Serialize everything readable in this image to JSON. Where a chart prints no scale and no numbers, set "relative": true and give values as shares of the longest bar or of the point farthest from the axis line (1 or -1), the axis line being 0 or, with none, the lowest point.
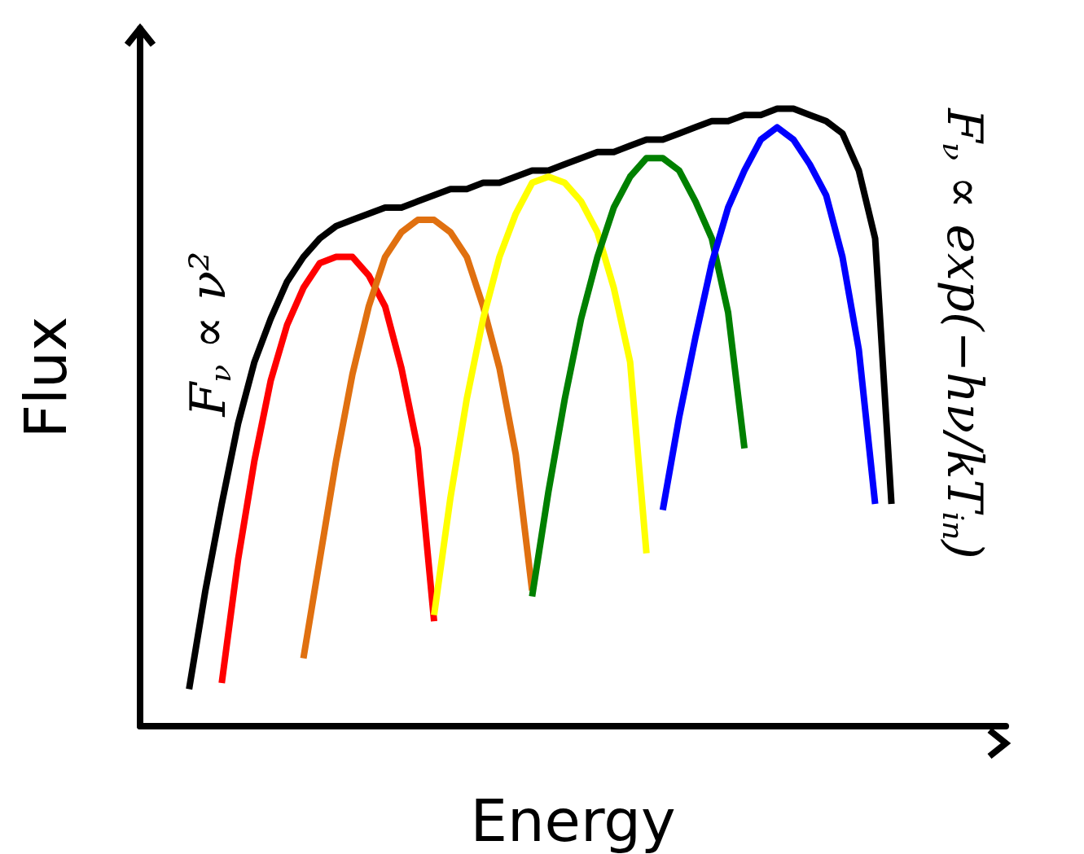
{
  "chart_data": {
    "type": "line",
    "relative": true,
    "xlabel": "Energy",
    "ylabel": "Flux",
    "annotations": [
      "F$_{ν}$ ∝ ν²",
      "F$_{ν}$ ∝ exp(−hν/kT$_{in}$)"
    ],
    "categories": [
      null,
      null,
      null,
      null,
      null,
      null,
      null,
      null,
      null,
      null,
      null,
      null,
      null,
      null,
      null,
      null,
      null,
      null,
      null,
      null,
      null,
      null,
      null,
      null,
      null,
      null,
      null,
      null,
      null,
      null,
      null,
      null,
      null,
      null,
      null,
      null,
      null,
      null,
      null,
      null,
      null,
      null,
      null,
      null,
      null,
      null,
      null,
      null,
      null,
      null,
      null,
      null,
      null,
      null
    ],
    "series": [
      {
        "color": "#000000",
        "values": [
          null,
          null,
          null,
          0.06,
          0.22,
          0.36,
          0.49,
          0.59,
          0.66,
          0.72,
          0.76,
          0.79,
          0.81,
          0.82,
          0.83,
          0.84,
          0.84,
          0.85,
          0.86,
          0.87,
          0.87,
          0.88,
          0.88,
          0.89,
          0.9,
          0.9,
          0.91,
          0.92,
          0.93,
          0.93,
          0.94,
          0.95,
          0.95,
          0.96,
          0.97,
          0.98,
          0.98,
          0.99,
          0.99,
          1.0,
          1.0,
          0.99,
          0.98,
          0.96,
          0.9,
          0.79,
          0.36,
          null,
          null,
          null,
          null,
          null,
          null,
          null
        ]
      },
      {
        "color": "#ff0000",
        "values": [
          null,
          null,
          null,
          null,
          null,
          0.07,
          0.27,
          0.43,
          0.56,
          0.65,
          0.71,
          0.75,
          0.76,
          0.76,
          0.73,
          0.68,
          0.58,
          0.45,
          0.17,
          null,
          null,
          null,
          null,
          null,
          null,
          null,
          null,
          null,
          null,
          null,
          null,
          null,
          null,
          null,
          null,
          null,
          null,
          null,
          null,
          null,
          null,
          null,
          null,
          null,
          null,
          null,
          null,
          null,
          null,
          null,
          null,
          null,
          null,
          null
        ]
      },
      {
        "color": "#e07010",
        "values": [
          null,
          null,
          null,
          null,
          null,
          null,
          null,
          null,
          null,
          null,
          0.11,
          0.27,
          0.43,
          0.57,
          0.68,
          0.76,
          0.8,
          0.82,
          0.82,
          0.8,
          0.76,
          0.68,
          0.58,
          0.44,
          0.22,
          null,
          null,
          null,
          null,
          null,
          null,
          null,
          null,
          null,
          null,
          null,
          null,
          null,
          null,
          null,
          null,
          null,
          null,
          null,
          null,
          null,
          null,
          null,
          null,
          null,
          null,
          null,
          null,
          null
        ]
      },
      {
        "color": "#ffff00",
        "values": [
          null,
          null,
          null,
          null,
          null,
          null,
          null,
          null,
          null,
          null,
          null,
          null,
          null,
          null,
          null,
          null,
          null,
          null,
          0.18,
          0.37,
          0.53,
          0.66,
          0.76,
          0.83,
          0.88,
          0.89,
          0.88,
          0.85,
          0.8,
          0.71,
          0.59,
          0.28,
          null,
          null,
          null,
          null,
          null,
          null,
          null,
          null,
          null,
          null,
          null,
          null,
          null,
          null,
          null,
          null,
          null,
          null,
          null,
          null,
          null,
          null
        ]
      },
      {
        "color": "#008000",
        "values": [
          null,
          null,
          null,
          null,
          null,
          null,
          null,
          null,
          null,
          null,
          null,
          null,
          null,
          null,
          null,
          null,
          null,
          null,
          null,
          null,
          null,
          null,
          null,
          null,
          0.21,
          0.38,
          0.53,
          0.66,
          0.76,
          0.84,
          0.89,
          0.92,
          0.92,
          0.9,
          0.85,
          0.79,
          0.67,
          0.45,
          null,
          null,
          null,
          null,
          null,
          null,
          null,
          null,
          null,
          null,
          null,
          null,
          null,
          null,
          null,
          null
        ]
      },
      {
        "color": "#0000ff",
        "values": [
          null,
          null,
          null,
          null,
          null,
          null,
          null,
          null,
          null,
          null,
          null,
          null,
          null,
          null,
          null,
          null,
          null,
          null,
          null,
          null,
          null,
          null,
          null,
          null,
          null,
          null,
          null,
          null,
          null,
          null,
          null,
          null,
          0.35,
          0.5,
          0.63,
          0.75,
          0.84,
          0.9,
          0.95,
          0.97,
          0.95,
          0.91,
          0.86,
          0.76,
          0.61,
          0.36,
          null,
          null,
          null,
          null,
          null,
          null,
          null,
          null
        ]
      }
    ]
  }
}
